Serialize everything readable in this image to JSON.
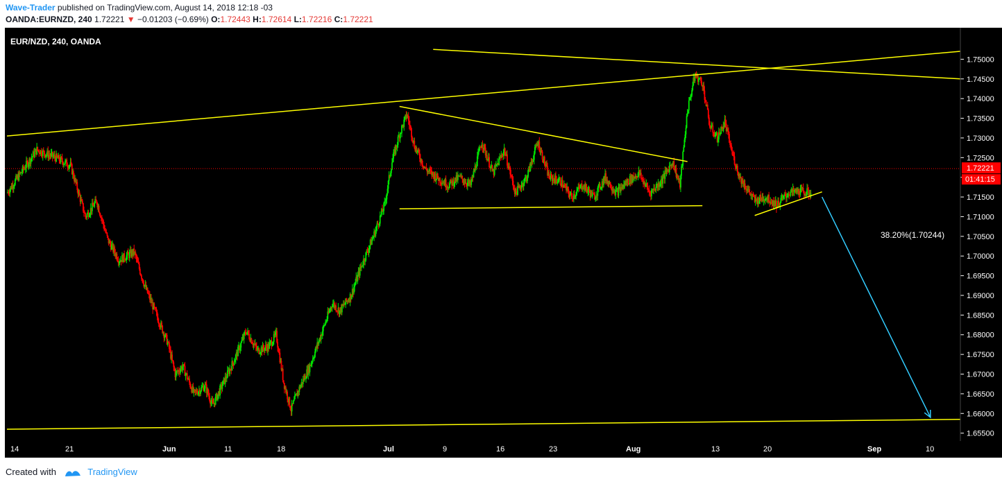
{
  "header": {
    "author": "Wave-Trader",
    "published_text": " published on TradingView.com, August 14, 2018 12:18 -03",
    "symbol": "OANDA:EURNZD, 240",
    "last": "1.72221",
    "change": "−0.01203 (−0.69%)",
    "o_label": "O:",
    "o_value": "1.72443",
    "h_label": "H:",
    "h_value": "1.72614",
    "l_label": "L:",
    "l_value": "1.72216",
    "c_label": "C:",
    "c_value": "1.72221"
  },
  "footer": {
    "created_with": "Created with",
    "brand": "TradingView"
  },
  "colors": {
    "background": "#000000",
    "up": "#00e600",
    "down": "#ff0000",
    "trendline": "#ffff00",
    "projection": "#33ccff",
    "axis_text": "#ffffff",
    "price_marker": "#ff0000"
  },
  "chart_data": {
    "type": "candlestick",
    "title": "EUR/NZD, 240, OANDA",
    "ylim": [
      1.653,
      1.758
    ],
    "y_ticks": [
      "1.75000",
      "1.74500",
      "1.74000",
      "1.73500",
      "1.73000",
      "1.72500",
      "1.72000",
      "1.71500",
      "1.71000",
      "1.70500",
      "1.70000",
      "1.69500",
      "1.69000",
      "1.68500",
      "1.68000",
      "1.67500",
      "1.67000",
      "1.66500",
      "1.66000",
      "1.65500"
    ],
    "x_ticks": [
      "14",
      "21",
      "Jun",
      "11",
      "18",
      "Jul",
      "9",
      "16",
      "23",
      "Aug",
      "13",
      "20",
      "Sep",
      "10"
    ],
    "current_price": "1.72221",
    "countdown": "01:41:15",
    "fib_label": "38.20%(1.70244)",
    "price_path": [
      [
        0,
        1.716
      ],
      [
        8,
        1.727
      ],
      [
        13,
        1.725
      ],
      [
        17,
        1.723
      ],
      [
        21,
        1.71
      ],
      [
        24,
        1.714
      ],
      [
        27,
        1.704
      ],
      [
        30,
        1.699
      ],
      [
        34,
        1.701
      ],
      [
        37,
        1.692
      ],
      [
        40,
        1.685
      ],
      [
        43,
        1.678
      ],
      [
        45,
        1.67
      ],
      [
        47,
        1.672
      ],
      [
        50,
        1.665
      ],
      [
        53,
        1.667
      ],
      [
        55,
        1.662
      ],
      [
        58,
        1.668
      ],
      [
        61,
        1.674
      ],
      [
        64,
        1.681
      ],
      [
        67,
        1.676
      ],
      [
        70,
        1.677
      ],
      [
        72,
        1.68
      ],
      [
        74,
        1.668
      ],
      [
        76,
        1.661
      ],
      [
        78,
        1.666
      ],
      [
        81,
        1.672
      ],
      [
        84,
        1.68
      ],
      [
        87,
        1.688
      ],
      [
        89,
        1.686
      ],
      [
        92,
        1.69
      ],
      [
        95,
        1.698
      ],
      [
        98,
        1.705
      ],
      [
        101,
        1.713
      ],
      [
        103,
        1.724
      ],
      [
        105,
        1.731
      ],
      [
        107,
        1.736
      ],
      [
        109,
        1.728
      ],
      [
        112,
        1.722
      ],
      [
        115,
        1.72
      ],
      [
        118,
        1.718
      ],
      [
        121,
        1.72
      ],
      [
        124,
        1.718
      ],
      [
        127,
        1.729
      ],
      [
        130,
        1.721
      ],
      [
        133,
        1.727
      ],
      [
        136,
        1.716
      ],
      [
        139,
        1.72
      ],
      [
        142,
        1.729
      ],
      [
        145,
        1.72
      ],
      [
        148,
        1.719
      ],
      [
        151,
        1.715
      ],
      [
        154,
        1.718
      ],
      [
        157,
        1.715
      ],
      [
        160,
        1.72
      ],
      [
        163,
        1.716
      ],
      [
        166,
        1.719
      ],
      [
        169,
        1.721
      ],
      [
        172,
        1.716
      ],
      [
        175,
        1.719
      ],
      [
        178,
        1.724
      ],
      [
        180,
        1.718
      ],
      [
        182,
        1.737
      ],
      [
        184,
        1.746
      ],
      [
        186,
        1.744
      ],
      [
        188,
        1.733
      ],
      [
        190,
        1.73
      ],
      [
        192,
        1.734
      ],
      [
        194,
        1.726
      ],
      [
        196,
        1.72
      ],
      [
        198,
        1.717
      ],
      [
        200,
        1.714
      ],
      [
        203,
        1.715
      ],
      [
        206,
        1.713
      ],
      [
        209,
        1.716
      ],
      [
        212,
        1.7165
      ],
      [
        215,
        1.716
      ]
    ],
    "trendlines": [
      {
        "name": "upper-rising-line",
        "color": "yellow",
        "from": [
          0,
          1.7305
        ],
        "to": [
          255,
          1.752
        ]
      },
      {
        "name": "upper-falling-line",
        "color": "yellow",
        "from": [
          114,
          1.7525
        ],
        "to": [
          255,
          1.745
        ]
      },
      {
        "name": "triangle-top-line",
        "color": "yellow",
        "from": [
          105,
          1.738
        ],
        "to": [
          182,
          1.724
        ]
      },
      {
        "name": "triangle-bottom-line",
        "color": "yellow",
        "from": [
          105,
          1.712
        ],
        "to": [
          186,
          1.7128
        ]
      },
      {
        "name": "rising-support-line",
        "color": "yellow",
        "from": [
          200,
          1.7103
        ],
        "to": [
          218,
          1.7163
        ]
      },
      {
        "name": "bottom-support-line",
        "color": "yellow",
        "from": [
          0,
          1.656
        ],
        "to": [
          255,
          1.6585
        ]
      }
    ],
    "projection": {
      "name": "projection-arrow",
      "color": "cyan",
      "from": [
        218,
        1.715
      ],
      "to": [
        247,
        1.659
      ]
    }
  }
}
